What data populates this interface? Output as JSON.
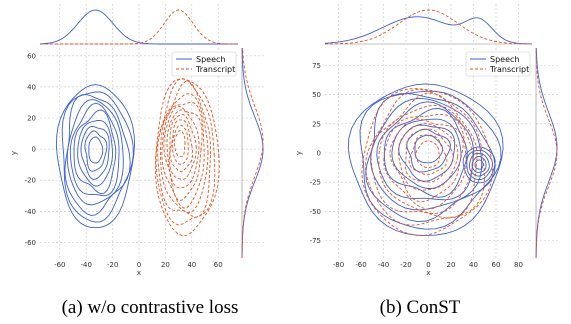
{
  "colors": {
    "speech": "#3c5fd6",
    "transcript": "#e8531f",
    "overlap": "#8a3a6b",
    "grid": "#c8c8c8"
  },
  "chart_data": [
    {
      "type": "scatter",
      "subtype": "kde-contour-with-marginals",
      "caption": "(a) w/o contrastive loss",
      "xlabel": "x",
      "ylabel": "y",
      "xlim": [
        -75,
        75
      ],
      "ylim": [
        -70,
        65
      ],
      "xticks": [
        -60,
        -40,
        -20,
        0,
        20,
        40,
        60
      ],
      "yticks": [
        -60,
        -40,
        -20,
        0,
        20,
        40,
        60
      ],
      "grid": true,
      "legend": {
        "placement": "top-right",
        "entries": [
          "Speech",
          "Transcript"
        ]
      },
      "series": [
        {
          "name": "Speech",
          "style": "solid",
          "center": [
            -33,
            0
          ],
          "extent": [
            [
              -62,
              -4
            ],
            [
              -50,
              42
            ]
          ],
          "levels": 10
        },
        {
          "name": "Transcript",
          "style": "dashed",
          "center": [
            30,
            5
          ],
          "extent": [
            [
              12,
              60
            ],
            [
              -55,
              45
            ]
          ],
          "levels": 11
        }
      ]
    },
    {
      "type": "scatter",
      "subtype": "kde-contour-with-marginals",
      "caption": "(b) ConST",
      "xlabel": "x",
      "ylabel": "y",
      "xlim": [
        -92,
        92
      ],
      "ylim": [
        -90,
        90
      ],
      "xticks": [
        -80,
        -60,
        -40,
        -20,
        0,
        20,
        40,
        60,
        80
      ],
      "yticks": [
        -75,
        -50,
        -25,
        0,
        25,
        50,
        75
      ],
      "grid": true,
      "legend": {
        "placement": "top-right",
        "entries": [
          "Speech",
          "Transcript"
        ]
      },
      "series": [
        {
          "name": "Speech",
          "style": "solid",
          "center": [
            0,
            5
          ],
          "extent": [
            [
              -70,
              65
            ],
            [
              -70,
              60
            ]
          ],
          "levels": 10,
          "hotspot": [
            45,
            -10
          ]
        },
        {
          "name": "Transcript",
          "style": "dashed",
          "center": [
            0,
            0
          ],
          "extent": [
            [
              -60,
              55
            ],
            [
              -70,
              55
            ]
          ],
          "levels": 10
        }
      ]
    }
  ]
}
